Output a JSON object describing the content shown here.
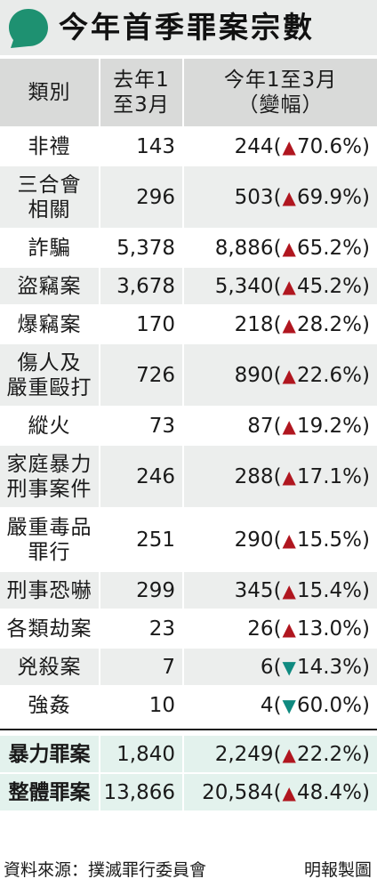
{
  "title": "今年首季罪案宗數",
  "colors": {
    "icon": "#1e9171",
    "up": "#b0161f",
    "down": "#0f8a80"
  },
  "headers": {
    "category": "類別",
    "prev": [
      "去年1",
      "至3月"
    ],
    "curr": [
      "今年1至3月",
      "（變幅）"
    ]
  },
  "chart_data": {
    "type": "table",
    "title": "今年首季罪案宗數",
    "columns": [
      "類別",
      "去年1至3月",
      "今年1至3月（變幅）"
    ],
    "rows": [
      {
        "category": [
          "非禮"
        ],
        "prev": "143",
        "curr": "244",
        "dir": "up",
        "change": "70.6%"
      },
      {
        "category": [
          "三合會",
          "相關"
        ],
        "prev": "296",
        "curr": "503",
        "dir": "up",
        "change": "69.9%"
      },
      {
        "category": [
          "詐騙"
        ],
        "prev": "5,378",
        "curr": "8,886",
        "dir": "up",
        "change": "65.2%"
      },
      {
        "category": [
          "盜竊案"
        ],
        "prev": "3,678",
        "curr": "5,340",
        "dir": "up",
        "change": "45.2%"
      },
      {
        "category": [
          "爆竊案"
        ],
        "prev": "170",
        "curr": "218",
        "dir": "up",
        "change": "28.2%"
      },
      {
        "category": [
          "傷人及",
          "嚴重毆打"
        ],
        "prev": "726",
        "curr": "890",
        "dir": "up",
        "change": "22.6%"
      },
      {
        "category": [
          "縱火"
        ],
        "prev": "73",
        "curr": "87",
        "dir": "up",
        "change": "19.2%"
      },
      {
        "category": [
          "家庭暴力",
          "刑事案件"
        ],
        "prev": "246",
        "curr": "288",
        "dir": "up",
        "change": "17.1%"
      },
      {
        "category": [
          "嚴重毒品",
          "罪行"
        ],
        "prev": "251",
        "curr": "290",
        "dir": "up",
        "change": "15.5%"
      },
      {
        "category": [
          "刑事恐嚇"
        ],
        "prev": "299",
        "curr": "345",
        "dir": "up",
        "change": "15.4%"
      },
      {
        "category": [
          "各類劫案"
        ],
        "prev": "23",
        "curr": "26",
        "dir": "up",
        "change": "13.0%"
      },
      {
        "category": [
          "兇殺案"
        ],
        "prev": "7",
        "curr": "6",
        "dir": "down",
        "change": "14.3%"
      },
      {
        "category": [
          "強姦"
        ],
        "prev": "10",
        "curr": "4",
        "dir": "down",
        "change": "60.0%"
      }
    ],
    "summary": [
      {
        "category": [
          "暴力罪案"
        ],
        "prev": "1,840",
        "curr": "2,249",
        "dir": "up",
        "change": "22.2%"
      },
      {
        "category": [
          "整體罪案"
        ],
        "prev": "13,866",
        "curr": "20,584",
        "dir": "up",
        "change": "48.4%"
      }
    ]
  },
  "footer": {
    "source": "資料來源：撲滅罪行委員會",
    "credit": "明報製圖"
  }
}
